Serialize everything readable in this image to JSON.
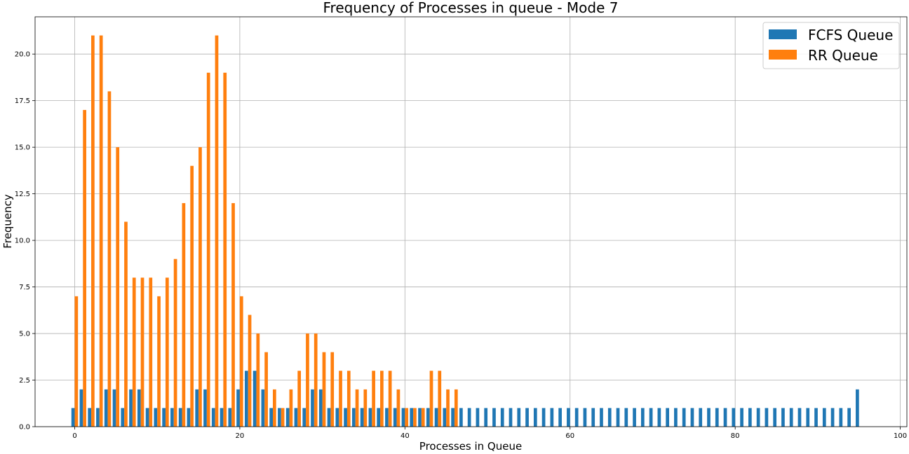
{
  "chart_data": {
    "type": "bar",
    "title": "Frequency of Processes in queue - Mode 7",
    "xlabel": "Processes in Queue",
    "ylabel": "Frequency",
    "xlim": [
      -4.8,
      100.8
    ],
    "ylim": [
      0,
      22
    ],
    "x_ticks": [
      0,
      20,
      40,
      60,
      80,
      100
    ],
    "x_tick_labels": [
      "0",
      "20",
      "40",
      "60",
      "80",
      "100"
    ],
    "y_ticks": [
      0,
      2.5,
      5,
      7.5,
      10,
      12.5,
      15,
      17.5,
      20
    ],
    "y_tick_labels": [
      "0.0",
      "2.5",
      "5.0",
      "7.5",
      "10.0",
      "12.5",
      "15.0",
      "17.5",
      "20.0"
    ],
    "grid": true,
    "legend_position": "top-right",
    "series": [
      {
        "name": "FCFS Queue",
        "color": "#1f77b4",
        "x": [
          0,
          1,
          2,
          3,
          4,
          5,
          6,
          7,
          8,
          9,
          10,
          11,
          12,
          13,
          14,
          15,
          16,
          17,
          18,
          19,
          20,
          21,
          22,
          23,
          24,
          25,
          26,
          27,
          28,
          29,
          30,
          31,
          32,
          33,
          34,
          35,
          36,
          37,
          38,
          39,
          40,
          41,
          42,
          43,
          44,
          45,
          46,
          47,
          48,
          49,
          50,
          51,
          52,
          53,
          54,
          55,
          56,
          57,
          58,
          59,
          60,
          61,
          62,
          63,
          64,
          65,
          66,
          67,
          68,
          69,
          70,
          71,
          72,
          73,
          74,
          75,
          76,
          77,
          78,
          79,
          80,
          81,
          82,
          83,
          84,
          85,
          86,
          87,
          88,
          89,
          90,
          91,
          92,
          93,
          94,
          95
        ],
        "values": [
          1,
          2,
          1,
          1,
          2,
          2,
          1,
          2,
          2,
          1,
          1,
          1,
          1,
          1,
          1,
          2,
          2,
          1,
          1,
          1,
          2,
          3,
          3,
          2,
          1,
          1,
          1,
          1,
          1,
          2,
          2,
          1,
          1,
          1,
          1,
          1,
          1,
          1,
          1,
          1,
          1,
          1,
          1,
          1,
          1,
          1,
          1,
          1,
          1,
          1,
          1,
          1,
          1,
          1,
          1,
          1,
          1,
          1,
          1,
          1,
          1,
          1,
          1,
          1,
          1,
          1,
          1,
          1,
          1,
          1,
          1,
          1,
          1,
          1,
          1,
          1,
          1,
          1,
          1,
          1,
          1,
          1,
          1,
          1,
          1,
          1,
          1,
          1,
          1,
          1,
          1,
          1,
          1,
          1,
          1,
          2
        ]
      },
      {
        "name": "RR Queue",
        "color": "#ff7f0e",
        "x": [
          0,
          1,
          2,
          3,
          4,
          5,
          6,
          7,
          8,
          9,
          10,
          11,
          12,
          13,
          14,
          15,
          16,
          17,
          18,
          19,
          20,
          21,
          22,
          23,
          24,
          25,
          26,
          27,
          28,
          29,
          30,
          31,
          32,
          33,
          34,
          35,
          36,
          37,
          38,
          39,
          40,
          41,
          42,
          43,
          44,
          45,
          46
        ],
        "values": [
          7,
          17,
          21,
          21,
          18,
          15,
          11,
          8,
          8,
          8,
          7,
          8,
          9,
          12,
          14,
          15,
          19,
          21,
          19,
          12,
          7,
          6,
          5,
          4,
          2,
          1,
          2,
          3,
          5,
          5,
          4,
          4,
          3,
          3,
          2,
          2,
          3,
          3,
          3,
          2,
          1,
          1,
          1,
          3,
          3,
          2,
          2
        ]
      }
    ]
  }
}
